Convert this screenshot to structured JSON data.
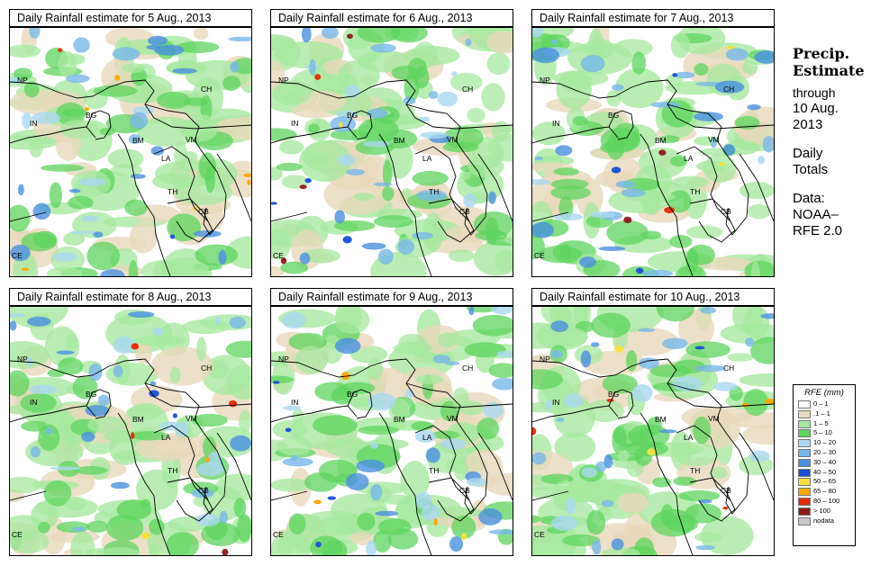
{
  "panels": [
    {
      "title": "Daily Rainfall estimate for  5 Aug., 2013",
      "seed": 5
    },
    {
      "title": "Daily Rainfall estimate for  6 Aug., 2013",
      "seed": 6
    },
    {
      "title": "Daily Rainfall estimate for  7 Aug., 2013",
      "seed": 7
    },
    {
      "title": "Daily Rainfall estimate for  8 Aug., 2013",
      "seed": 8
    },
    {
      "title": "Daily Rainfall estimate for  9 Aug., 2013",
      "seed": 9
    },
    {
      "title": "Daily Rainfall estimate for  10 Aug., 2013",
      "seed": 10
    }
  ],
  "map_labels": [
    "NP",
    "IN",
    "BG",
    "BM",
    "CH",
    "VM",
    "LA",
    "TH",
    "CB",
    "CE"
  ],
  "side": {
    "title1": "Precip.",
    "title2": "Estimate",
    "through": "through",
    "date1": "10 Aug.",
    "date2": "2013",
    "daily1": "Daily",
    "daily2": "Totals",
    "data1": "Data:",
    "data2": "NOAA–",
    "data3": "RFE 2.0"
  },
  "legend": {
    "title": "RFE (mm)",
    "items": [
      {
        "label": "0 – 1",
        "color": "#ffffff"
      },
      {
        "label": ".1 – 1",
        "color": "#e8d8bc"
      },
      {
        "label": "1 – 5",
        "color": "#a8e8a0"
      },
      {
        "label": "5 – 10",
        "color": "#5ed45e"
      },
      {
        "label": "10 – 20",
        "color": "#aad8f0"
      },
      {
        "label": "20 – 30",
        "color": "#78b8e8"
      },
      {
        "label": "30 – 40",
        "color": "#4a90e0"
      },
      {
        "label": "40 – 50",
        "color": "#1a4ed8"
      },
      {
        "label": "50 – 65",
        "color": "#f8e040"
      },
      {
        "label": "65 – 80",
        "color": "#f8a800"
      },
      {
        "label": "80 – 100",
        "color": "#e82800"
      },
      {
        "label": "> 100",
        "color": "#901818"
      },
      {
        "label": "nodata",
        "color": "#c8c8c8"
      }
    ]
  }
}
